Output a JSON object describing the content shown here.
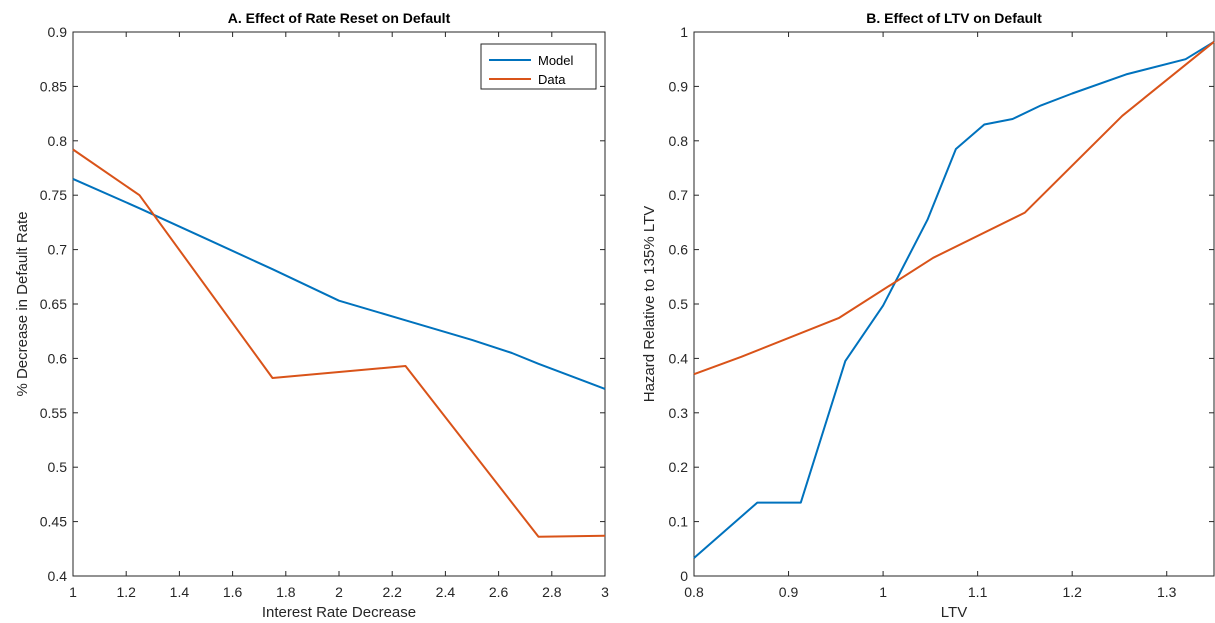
{
  "chart_data": [
    {
      "type": "line",
      "title": "A. Effect of Rate Reset on Default",
      "xlabel": "Interest Rate Decrease",
      "ylabel": "% Decrease in Default Rate",
      "xlim": [
        1,
        3
      ],
      "ylim": [
        0.4,
        0.9
      ],
      "xticks": [
        "1",
        "1.2",
        "1.4",
        "1.6",
        "1.8",
        "2",
        "2.2",
        "2.4",
        "2.6",
        "2.8",
        "3"
      ],
      "yticks": [
        "0.4",
        "0.45",
        "0.5",
        "0.55",
        "0.6",
        "0.65",
        "0.7",
        "0.75",
        "0.8",
        "0.85",
        "0.9"
      ],
      "legend": "top-right",
      "series": [
        {
          "name": "Model",
          "color": "#0072BD",
          "x": [
            1,
            1.25,
            1.5,
            1.75,
            2,
            2.25,
            2.5,
            2.65,
            2.75,
            3
          ],
          "y": [
            0.765,
            0.738,
            0.71,
            0.682,
            0.653,
            0.635,
            0.617,
            0.605,
            0.595,
            0.572
          ]
        },
        {
          "name": "Data",
          "color": "#D95319",
          "x": [
            1,
            1.25,
            1.75,
            2.25,
            2.75,
            3
          ],
          "y": [
            0.792,
            0.75,
            0.582,
            0.593,
            0.436,
            0.437
          ]
        }
      ]
    },
    {
      "type": "line",
      "title": "B. Effect of LTV on Default",
      "xlabel": "LTV",
      "ylabel": "Hazard Relative to 135% LTV",
      "xlim": [
        0.8,
        1.35
      ],
      "ylim": [
        0,
        1
      ],
      "xticks": [
        "0.8",
        "0.9",
        "1",
        "1.1",
        "1.2",
        "1.3"
      ],
      "yticks": [
        "0",
        "0.1",
        "0.2",
        "0.3",
        "0.4",
        "0.5",
        "0.6",
        "0.7",
        "0.8",
        "0.9",
        "1"
      ],
      "legend": "none",
      "series": [
        {
          "color": "#0072BD",
          "x": [
            0.8,
            0.867,
            0.913,
            0.96,
            1.0,
            1.047,
            1.077,
            1.107,
            1.137,
            1.167,
            1.2,
            1.257,
            1.32,
            1.35
          ],
          "y": [
            0.033,
            0.135,
            0.135,
            0.395,
            0.497,
            0.655,
            0.785,
            0.83,
            0.84,
            0.865,
            0.887,
            0.922,
            0.95,
            0.982
          ]
        },
        {
          "color": "#D95319",
          "x": [
            0.8,
            0.85,
            0.953,
            1.053,
            1.15,
            1.253,
            1.35
          ],
          "y": [
            0.371,
            0.403,
            0.474,
            0.585,
            0.668,
            0.846,
            0.982
          ]
        }
      ]
    }
  ]
}
